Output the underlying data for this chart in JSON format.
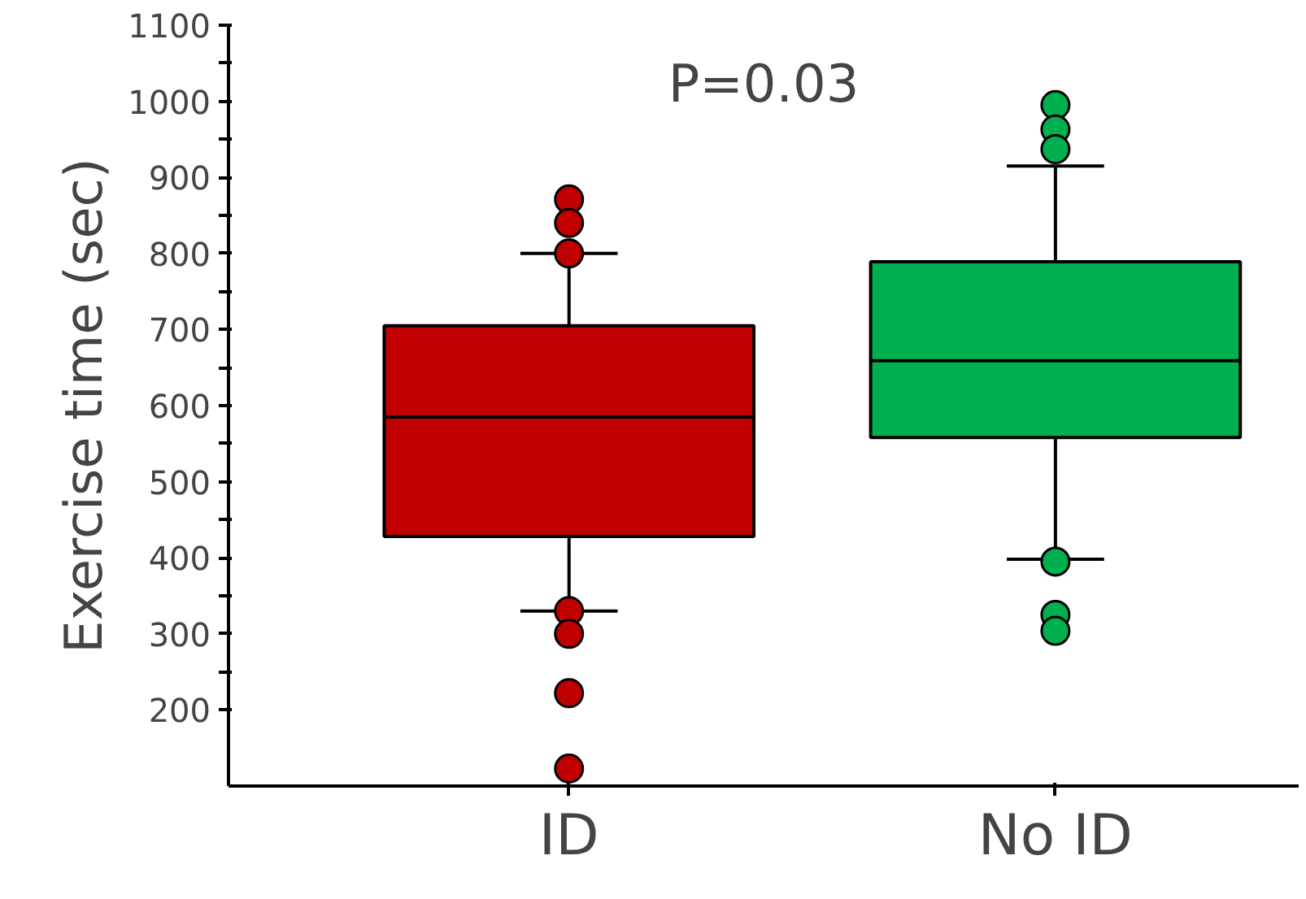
{
  "chart_data": {
    "type": "box",
    "ylabel": "Exercise time (sec)",
    "categories": [
      "ID",
      "No ID"
    ],
    "colors": [
      "#c00000",
      "#00b050"
    ],
    "boxes": [
      {
        "low": 330,
        "q1": 428,
        "median": 585,
        "q3": 705,
        "high": 800,
        "outliers": [
          871,
          840,
          800,
          330,
          300,
          222,
          123
        ]
      },
      {
        "low": 398,
        "q1": 558,
        "median": 659,
        "q3": 789,
        "high": 915,
        "outliers": [
          995,
          963,
          937,
          395,
          325,
          304
        ]
      }
    ],
    "ylim": [
      100,
      1100
    ],
    "yticks": [
      200,
      {
        "value": 250,
        "label": null
      },
      300,
      {
        "value": 350,
        "label": null
      },
      400,
      {
        "value": 450,
        "label": null
      },
      500,
      {
        "value": 550,
        "label": null
      },
      600,
      {
        "value": 650,
        "label": null
      },
      700,
      {
        "value": 750,
        "label": null
      },
      800,
      {
        "value": 850,
        "label": null
      },
      900,
      {
        "value": 950,
        "label": null
      },
      1000,
      {
        "value": 1050,
        "label": null
      },
      1100
    ],
    "annotations": [
      "P=0.03"
    ],
    "grid": false
  }
}
